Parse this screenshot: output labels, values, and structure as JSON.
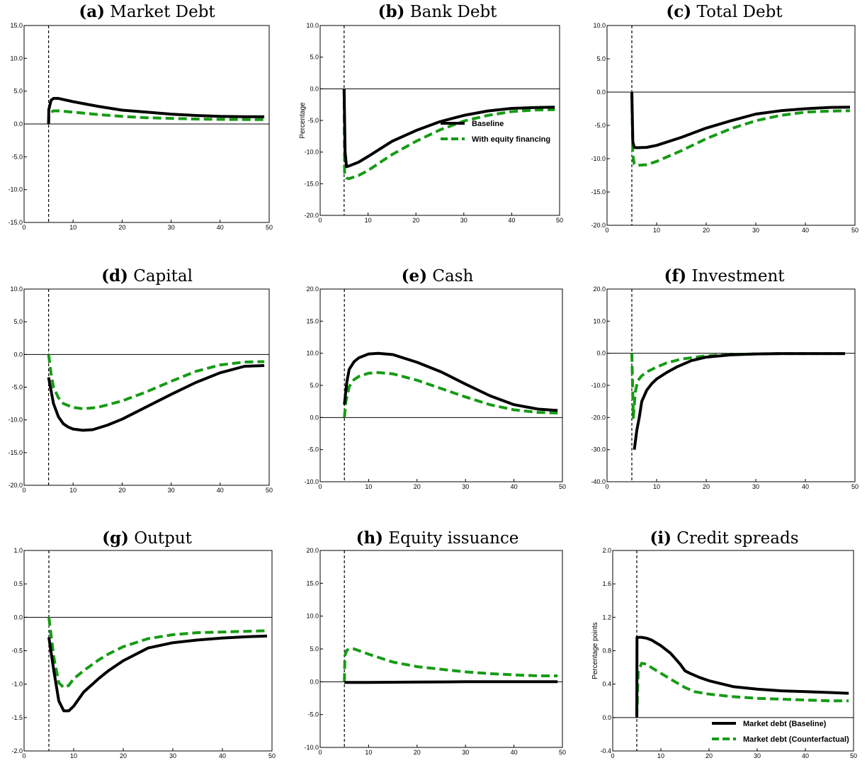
{
  "colors": {
    "baseline": "#000000",
    "counterfactual": "#169b14"
  },
  "chart_data": [
    {
      "panel": "a",
      "label": "(a)",
      "name": "Market Debt",
      "type": "line",
      "xlim": [
        0,
        50
      ],
      "ylim": [
        -15,
        15
      ],
      "xticks": [
        0,
        10,
        20,
        30,
        40,
        50
      ],
      "yticks": [
        -15,
        -10,
        -5,
        0,
        5,
        10,
        15
      ],
      "ytick_labels": [
        "-15.0",
        "-10.0",
        "-5.0",
        "0.0",
        "5.0",
        "10.0",
        "15.0"
      ],
      "shock_x": 5,
      "ylabel": "",
      "legend": null,
      "series": [
        {
          "key": "baseline",
          "x": [
            5,
            5.05,
            5.5,
            6,
            7,
            10,
            15,
            20,
            25,
            30,
            35,
            40,
            45,
            49
          ],
          "y": [
            0,
            2.2,
            3.6,
            3.9,
            3.9,
            3.4,
            2.7,
            2.1,
            1.8,
            1.5,
            1.3,
            1.15,
            1.1,
            1.1
          ]
        },
        {
          "key": "counterfactual",
          "x": [
            5,
            5.05,
            5.5,
            6,
            7,
            10,
            15,
            20,
            25,
            30,
            35,
            40,
            45,
            49
          ],
          "y": [
            0,
            1.2,
            1.8,
            2.0,
            2.0,
            1.8,
            1.45,
            1.15,
            0.95,
            0.85,
            0.75,
            0.7,
            0.68,
            0.68
          ]
        }
      ]
    },
    {
      "panel": "b",
      "label": "(b)",
      "name": "Bank Debt",
      "type": "line",
      "xlim": [
        0,
        50
      ],
      "ylim": [
        -20,
        10
      ],
      "xticks": [
        0,
        10,
        20,
        30,
        40,
        50
      ],
      "yticks": [
        -20,
        -15,
        -10,
        -5,
        0,
        5,
        10
      ],
      "ytick_labels": [
        "-20.0",
        "-15.0",
        "-10.0",
        "-5.0",
        "0.0",
        "5.0",
        "10.0"
      ],
      "shock_x": 5,
      "ylabel": "Percentage",
      "legend": [
        "Baseline",
        "With equity financing"
      ],
      "series": [
        {
          "key": "baseline",
          "x": [
            5,
            5.2,
            5.5,
            6,
            8,
            10,
            15,
            20,
            25,
            30,
            35,
            40,
            45,
            49
          ],
          "y": [
            0,
            -10,
            -12.3,
            -12.2,
            -11.6,
            -10.7,
            -8.3,
            -6.6,
            -5.2,
            -4.2,
            -3.5,
            -3.1,
            -2.95,
            -2.9
          ]
        },
        {
          "key": "counterfactual",
          "x": [
            5,
            5.1,
            5.5,
            6,
            8,
            10,
            15,
            20,
            25,
            30,
            35,
            40,
            45,
            49
          ],
          "y": [
            0,
            -13.5,
            -14.1,
            -14.2,
            -13.7,
            -12.9,
            -10.4,
            -8.3,
            -6.5,
            -5.1,
            -4.2,
            -3.6,
            -3.35,
            -3.3
          ]
        }
      ]
    },
    {
      "panel": "c",
      "label": "(c)",
      "name": "Total Debt",
      "type": "line",
      "xlim": [
        0,
        50
      ],
      "ylim": [
        -20,
        10
      ],
      "xticks": [
        0,
        10,
        20,
        30,
        40,
        50
      ],
      "yticks": [
        -20,
        -15,
        -10,
        -5,
        0,
        5,
        10
      ],
      "ytick_labels": [
        "-20.0",
        "-15.0",
        "-10.0",
        "-5.0",
        "0.0",
        "5.0",
        "10.0"
      ],
      "shock_x": 5,
      "ylabel": "",
      "legend": null,
      "series": [
        {
          "key": "baseline",
          "x": [
            5,
            5.2,
            5.5,
            6,
            8,
            10,
            15,
            20,
            25,
            30,
            35,
            40,
            45,
            49
          ],
          "y": [
            0,
            -7.5,
            -8.3,
            -8.35,
            -8.3,
            -8.0,
            -6.8,
            -5.4,
            -4.3,
            -3.3,
            -2.8,
            -2.5,
            -2.3,
            -2.25
          ]
        },
        {
          "key": "counterfactual",
          "x": [
            5,
            5.2,
            5.5,
            6,
            8,
            10,
            15,
            20,
            25,
            30,
            35,
            40,
            45,
            49
          ],
          "y": [
            0,
            -9.5,
            -10.8,
            -11.0,
            -10.9,
            -10.4,
            -8.8,
            -7.0,
            -5.5,
            -4.3,
            -3.5,
            -3.0,
            -2.85,
            -2.8
          ]
        }
      ]
    },
    {
      "panel": "d",
      "label": "(d)",
      "name": "Capital",
      "type": "line",
      "xlim": [
        0,
        50
      ],
      "ylim": [
        -20,
        10
      ],
      "xticks": [
        0,
        10,
        20,
        30,
        40,
        50
      ],
      "yticks": [
        -20,
        -15,
        -10,
        -5,
        0,
        5,
        10
      ],
      "ytick_labels": [
        "-20.0",
        "-15.0",
        "-10.0",
        "-5.0",
        "0.0",
        "5.0",
        "10.0"
      ],
      "shock_x": 5,
      "ylabel": "",
      "legend": null,
      "series": [
        {
          "key": "baseline",
          "x": [
            5,
            6,
            7,
            8,
            9,
            10,
            12,
            14,
            17,
            20,
            25,
            30,
            35,
            40,
            45,
            49
          ],
          "y": [
            -3.5,
            -7.5,
            -9.5,
            -10.6,
            -11.1,
            -11.4,
            -11.6,
            -11.5,
            -10.8,
            -9.9,
            -8.0,
            -6.1,
            -4.3,
            -2.8,
            -1.8,
            -1.7
          ]
        },
        {
          "key": "counterfactual",
          "x": [
            5,
            5.5,
            6,
            7,
            8,
            10,
            12,
            15,
            20,
            25,
            30,
            35,
            40,
            45,
            49
          ],
          "y": [
            0,
            -3.0,
            -5.0,
            -6.6,
            -7.5,
            -8.1,
            -8.3,
            -8.1,
            -7.1,
            -5.7,
            -4.1,
            -2.6,
            -1.6,
            -1.15,
            -1.1
          ]
        }
      ]
    },
    {
      "panel": "e",
      "label": "(e)",
      "name": "Cash",
      "type": "line",
      "xlim": [
        0,
        50
      ],
      "ylim": [
        -10,
        20
      ],
      "xticks": [
        0,
        10,
        20,
        30,
        40,
        50
      ],
      "yticks": [
        -10,
        -5,
        0,
        5,
        10,
        15,
        20
      ],
      "ytick_labels": [
        "-10.0",
        "-5.0",
        "0.0",
        "5.0",
        "10.0",
        "15.0",
        "20.0"
      ],
      "shock_x": 5,
      "ylabel": "",
      "legend": null,
      "series": [
        {
          "key": "baseline",
          "x": [
            5,
            5.5,
            6,
            7,
            8,
            10,
            12,
            15,
            20,
            25,
            30,
            35,
            40,
            45,
            49
          ],
          "y": [
            2.0,
            5.5,
            7.5,
            8.7,
            9.3,
            9.9,
            10.0,
            9.8,
            8.6,
            7.1,
            5.2,
            3.4,
            2.0,
            1.3,
            1.1
          ]
        },
        {
          "key": "counterfactual",
          "x": [
            5,
            5.3,
            6,
            7,
            8,
            10,
            12,
            15,
            20,
            25,
            30,
            35,
            40,
            45,
            49
          ],
          "y": [
            0,
            2.5,
            4.8,
            5.9,
            6.4,
            6.9,
            7.0,
            6.8,
            5.8,
            4.5,
            3.2,
            2.0,
            1.2,
            0.8,
            0.7
          ]
        }
      ]
    },
    {
      "panel": "f",
      "label": "(f)",
      "name": "Investment",
      "type": "line",
      "xlim": [
        0,
        50
      ],
      "ylim": [
        -40,
        20
      ],
      "xticks": [
        0,
        10,
        20,
        30,
        40,
        50
      ],
      "yticks": [
        -40,
        -30,
        -20,
        -10,
        0,
        10,
        20
      ],
      "ytick_labels": [
        "-40.0",
        "-30.0",
        "-20.0",
        "-10.0",
        "0.0",
        "10.0",
        "20.0"
      ],
      "shock_x": 5,
      "ylabel": "",
      "legend": null,
      "series": [
        {
          "key": "baseline",
          "x": [
            5.5,
            6,
            6.5,
            7,
            8,
            9,
            10,
            12,
            14,
            17,
            20,
            25,
            30,
            35,
            40,
            48
          ],
          "y": [
            -30,
            -24,
            -20,
            -15,
            -11.5,
            -9.5,
            -8,
            -6,
            -4.3,
            -2.3,
            -1.2,
            -0.5,
            -0.2,
            -0.1,
            -0.1,
            -0.1
          ]
        },
        {
          "key": "counterfactual",
          "x": [
            5,
            5.3,
            5.7,
            6.2,
            7,
            8,
            10,
            12,
            15,
            20,
            25,
            30,
            35,
            40,
            48
          ],
          "y": [
            0,
            -20,
            -12,
            -8.5,
            -7,
            -5.8,
            -4.3,
            -3.0,
            -1.8,
            -0.8,
            -0.4,
            -0.2,
            -0.1,
            -0.1,
            -0.1
          ]
        }
      ]
    },
    {
      "panel": "g",
      "label": "(g)",
      "name": "Output",
      "type": "line",
      "xlim": [
        0,
        50
      ],
      "ylim": [
        -2,
        1
      ],
      "xticks": [
        0,
        10,
        20,
        30,
        40,
        50
      ],
      "yticks": [
        -2,
        -1.5,
        -1,
        -0.5,
        0,
        0.5,
        1
      ],
      "ytick_labels": [
        "-2.0",
        "-1.5",
        "-1.0",
        "-0.5",
        "0.0",
        "0.5",
        "1.0"
      ],
      "shock_x": 5,
      "ylabel": "",
      "legend": null,
      "series": [
        {
          "key": "baseline",
          "x": [
            5,
            6,
            7,
            8,
            9,
            10,
            12,
            15,
            17,
            20,
            25,
            30,
            35,
            40,
            45,
            49
          ],
          "y": [
            -0.3,
            -0.8,
            -1.25,
            -1.4,
            -1.4,
            -1.33,
            -1.12,
            -0.92,
            -0.8,
            -0.65,
            -0.46,
            -0.38,
            -0.34,
            -0.31,
            -0.29,
            -0.28
          ]
        },
        {
          "key": "counterfactual",
          "x": [
            5,
            6,
            7,
            8,
            9,
            10,
            12,
            15,
            17,
            20,
            25,
            30,
            35,
            40,
            45,
            49
          ],
          "y": [
            0,
            -0.6,
            -0.98,
            -1.05,
            -1.02,
            -0.92,
            -0.8,
            -0.64,
            -0.55,
            -0.44,
            -0.32,
            -0.26,
            -0.23,
            -0.22,
            -0.21,
            -0.2
          ]
        }
      ]
    },
    {
      "panel": "h",
      "label": "(h)",
      "name": "Equity issuance",
      "type": "line",
      "xlim": [
        0,
        50
      ],
      "ylim": [
        -10,
        20
      ],
      "xticks": [
        0,
        10,
        20,
        30,
        40,
        50
      ],
      "yticks": [
        -10,
        -5,
        0,
        5,
        10,
        15,
        20
      ],
      "ytick_labels": [
        "-10.0",
        "-5.0",
        "0.0",
        "5.0",
        "10.0",
        "15.0",
        "20.0"
      ],
      "shock_x": 5,
      "ylabel": "",
      "legend": null,
      "series": [
        {
          "key": "baseline",
          "x": [
            5,
            10,
            20,
            30,
            40,
            49
          ],
          "y": [
            -0.1,
            -0.1,
            -0.05,
            0,
            0,
            0
          ]
        },
        {
          "key": "counterfactual",
          "x": [
            5,
            5.1,
            5.5,
            6,
            7,
            10,
            15,
            20,
            25,
            30,
            35,
            40,
            45,
            49
          ],
          "y": [
            0,
            4.0,
            4.8,
            5.0,
            5.0,
            4.2,
            3.0,
            2.3,
            1.9,
            1.5,
            1.25,
            1.05,
            0.9,
            0.9
          ]
        }
      ]
    },
    {
      "panel": "i",
      "label": "(i)",
      "name": "Credit spreads",
      "type": "line",
      "xlim": [
        0,
        50
      ],
      "ylim": [
        -0.4,
        2.0
      ],
      "xticks": [
        0,
        10,
        20,
        30,
        40,
        50
      ],
      "yticks": [
        -0.4,
        0,
        0.4,
        0.8,
        1.2,
        1.6,
        2.0
      ],
      "ytick_labels": [
        "-0.4",
        "0.0",
        "0.4",
        "0.8",
        "1.2",
        "1.6",
        "2.0"
      ],
      "shock_x": 5,
      "ylabel": "Percentage points",
      "legend": [
        "Market debt (Baseline)",
        "Market debt (Counterfactual)"
      ],
      "series": [
        {
          "key": "baseline",
          "x": [
            5,
            5.05,
            6,
            7,
            8,
            10,
            12,
            14,
            15,
            16,
            18,
            20,
            25,
            30,
            35,
            40,
            45,
            49
          ],
          "y": [
            0,
            0.96,
            0.96,
            0.95,
            0.93,
            0.86,
            0.77,
            0.64,
            0.56,
            0.53,
            0.48,
            0.44,
            0.37,
            0.34,
            0.32,
            0.31,
            0.3,
            0.29
          ]
        },
        {
          "key": "counterfactual",
          "x": [
            5,
            5.3,
            6,
            7,
            8,
            10,
            12,
            15,
            17,
            20,
            25,
            30,
            35,
            40,
            45,
            49
          ],
          "y": [
            0,
            0.55,
            0.65,
            0.64,
            0.6,
            0.53,
            0.46,
            0.36,
            0.31,
            0.28,
            0.25,
            0.23,
            0.22,
            0.21,
            0.2,
            0.2
          ]
        }
      ]
    }
  ]
}
